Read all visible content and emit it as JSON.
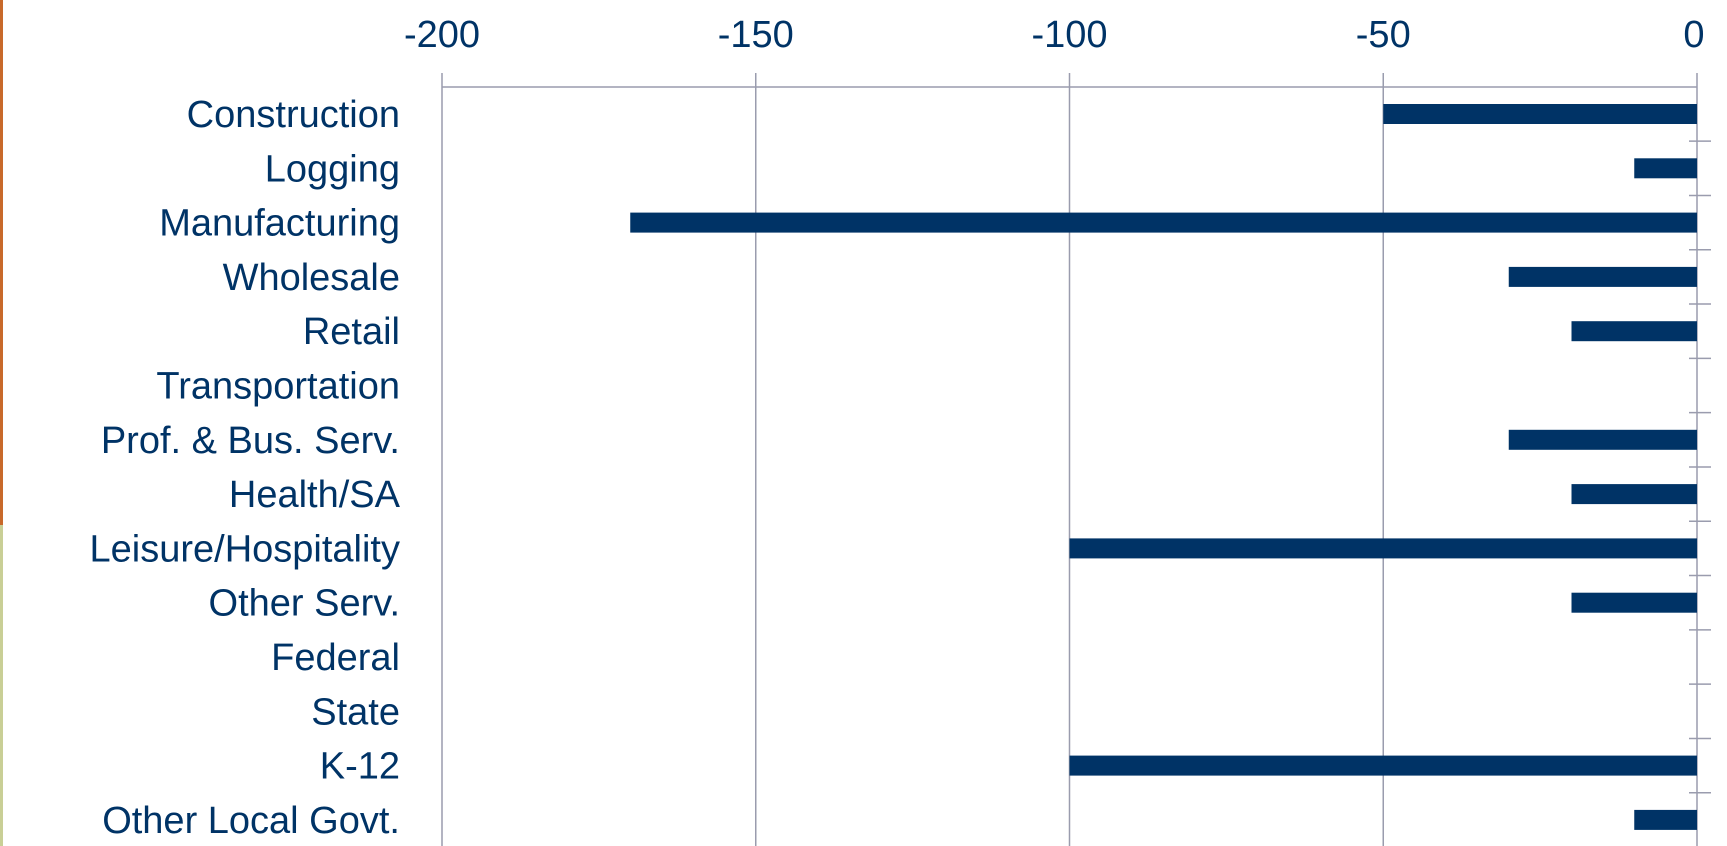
{
  "chart_data": {
    "type": "bar",
    "orientation": "horizontal",
    "title": "",
    "xlabel": "",
    "ylabel": "",
    "xlim": [
      -200,
      0
    ],
    "x_ticks": [
      "-200",
      "-150",
      "-100",
      "-50",
      "0"
    ],
    "x_tick_values": [
      -200,
      -150,
      -100,
      -50,
      0
    ],
    "x_axis_position": "top",
    "grid": "vertical",
    "categories": [
      "Construction",
      "Logging",
      "Manufacturing",
      "Wholesale",
      "Retail",
      "Transportation",
      "Prof. & Bus. Serv.",
      "Health/SA",
      "Leisure/Hospitality",
      "Other Serv.",
      "Federal",
      "State",
      "K-12",
      "Other Local Govt."
    ],
    "values": [
      -50,
      -10,
      -170,
      -30,
      -20,
      0,
      -30,
      -20,
      -100,
      -20,
      0,
      0,
      -100,
      -10
    ],
    "colors": {
      "bar": "#003366",
      "label": "#003366",
      "grid": "#9a9cae",
      "left_strip_top": "#c8692a",
      "left_strip_bottom": "#c9cf96"
    }
  }
}
